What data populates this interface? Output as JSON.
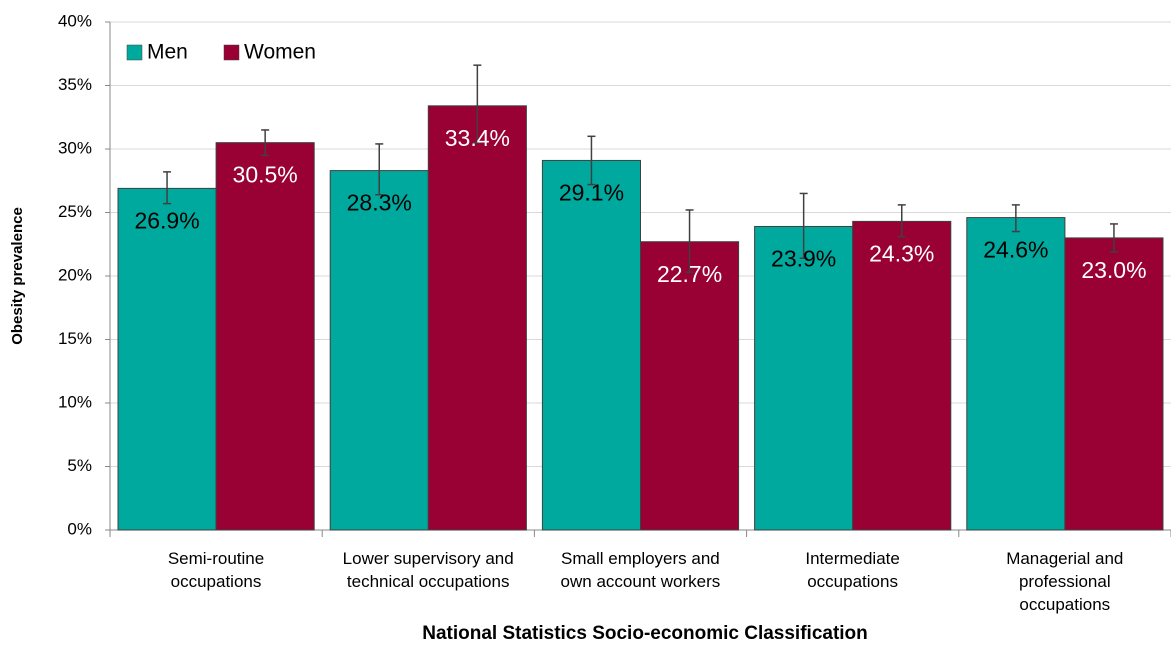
{
  "chart_data": {
    "type": "bar",
    "x_label": "National Statistics Socio-economic Classification",
    "y_label": "Obesity prevalence",
    "categories": [
      "Semi-routine\noccupations",
      "Lower supervisory and\ntechnical occupations",
      "Small employers and\nown account workers",
      "Intermediate\noccupations",
      "Managerial and\nprofessional\noccupations"
    ],
    "series": [
      {
        "name": "Men",
        "color": "#00a99d",
        "label_color": "#000000",
        "values": [
          26.9,
          28.3,
          29.1,
          23.9,
          24.6
        ],
        "value_labels": [
          "26.9%",
          "28.3%",
          "29.1%",
          "23.9%",
          "24.6%"
        ],
        "error_low": [
          25.7,
          26.4,
          27.2,
          21.4,
          23.5
        ],
        "error_high": [
          28.2,
          30.4,
          31.0,
          26.5,
          25.6
        ]
      },
      {
        "name": "Women",
        "color": "#990033",
        "label_color": "#ffffff",
        "values": [
          30.5,
          33.4,
          22.7,
          24.3,
          23.0
        ],
        "value_labels": [
          "30.5%",
          "33.4%",
          "22.7%",
          "24.3%",
          "23.0%"
        ],
        "error_low": [
          29.5,
          30.5,
          20.3,
          23.1,
          21.9
        ],
        "error_high": [
          31.5,
          36.6,
          25.2,
          25.6,
          24.1
        ]
      }
    ],
    "ylim": [
      0,
      40
    ],
    "yticks": [
      {
        "value": 0,
        "label": "0%"
      },
      {
        "value": 5,
        "label": "5%"
      },
      {
        "value": 10,
        "label": "10%"
      },
      {
        "value": 15,
        "label": "15%"
      },
      {
        "value": 20,
        "label": "20%"
      },
      {
        "value": 25,
        "label": "25%"
      },
      {
        "value": 30,
        "label": "30%"
      },
      {
        "value": 35,
        "label": "35%"
      },
      {
        "value": 40,
        "label": "40%"
      }
    ],
    "grid": true
  }
}
